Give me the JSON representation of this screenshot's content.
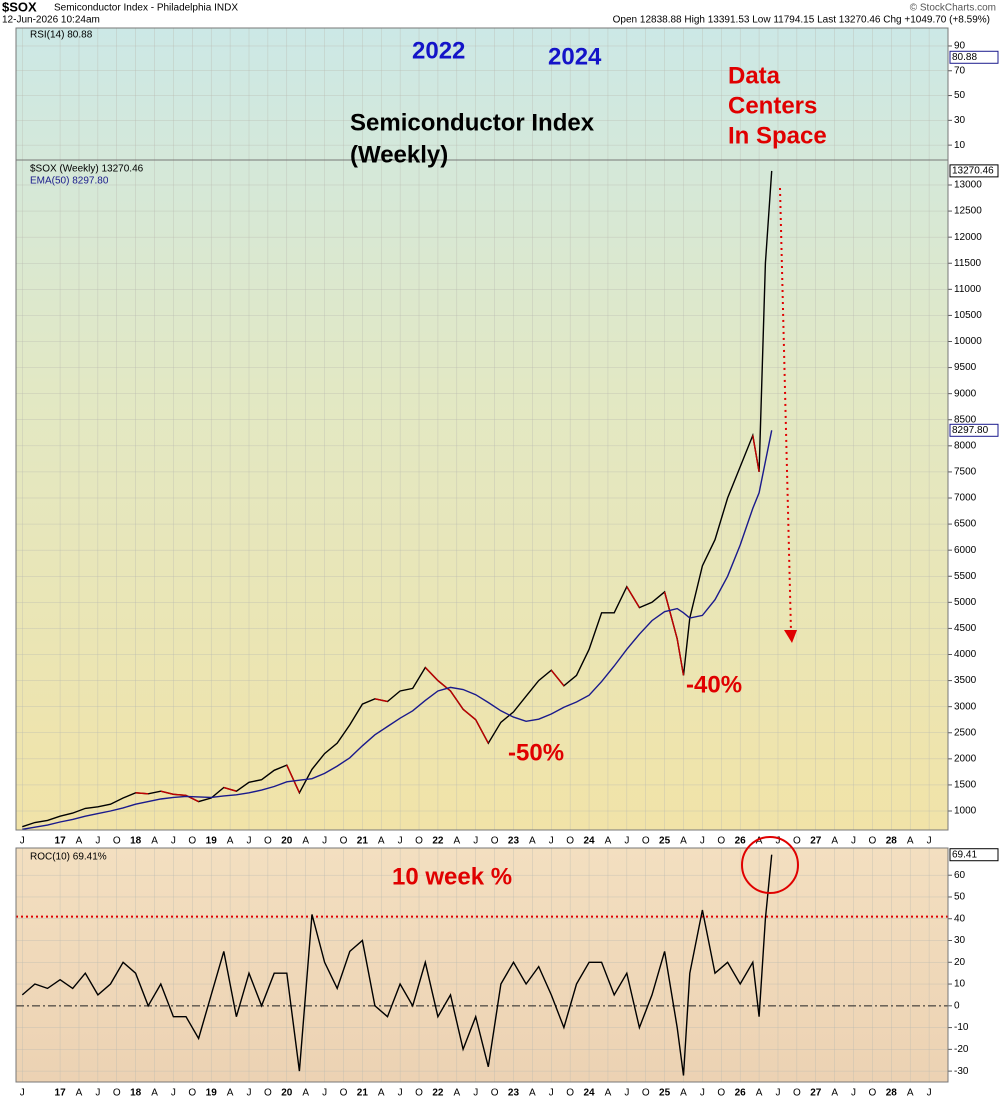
{
  "header": {
    "symbol": "$SOX",
    "name": "Semiconductor Index - Philadelphia INDX",
    "date": "12-Jun-2026 10:24am",
    "quote": "Open 12838.88  High 13391.53  Low 11794.15  Last 13270.46  Chg +1049.70 (+8.59%)",
    "credit": "© StockCharts.com"
  },
  "chart_data": [
    {
      "type": "line",
      "legend": "RSI(14) 80.88",
      "last_value": 80.88,
      "ylim": [
        -2,
        104.5
      ],
      "yticks": [
        10,
        30,
        50,
        70,
        90
      ],
      "grid": true
    },
    {
      "type": "line",
      "title": [
        "Semiconductor Index",
        "(Weekly)"
      ],
      "annotations": [
        "2022",
        "2024",
        "-50%",
        "-40%"
      ],
      "callout": [
        "Data",
        "Centers",
        "In Space"
      ],
      "xlim": [
        "2016-06",
        "2028-10"
      ],
      "xticks": [
        {
          "value": "2016-07",
          "label": "J"
        },
        {
          "value": "2017-01",
          "label": "17"
        },
        {
          "value": "2017-04",
          "label": "A"
        },
        {
          "value": "2017-07",
          "label": "J"
        },
        {
          "value": "2017-10",
          "label": "O"
        },
        {
          "value": "2018-01",
          "label": "18"
        },
        {
          "value": "2018-04",
          "label": "A"
        },
        {
          "value": "2018-07",
          "label": "J"
        },
        {
          "value": "2018-10",
          "label": "O"
        },
        {
          "value": "2019-01",
          "label": "19"
        },
        {
          "value": "2019-04",
          "label": "A"
        },
        {
          "value": "2019-07",
          "label": "J"
        },
        {
          "value": "2019-10",
          "label": "O"
        },
        {
          "value": "2020-01",
          "label": "20"
        },
        {
          "value": "2020-04",
          "label": "A"
        },
        {
          "value": "2020-07",
          "label": "J"
        },
        {
          "value": "2020-10",
          "label": "O"
        },
        {
          "value": "2021-01",
          "label": "21"
        },
        {
          "value": "2021-04",
          "label": "A"
        },
        {
          "value": "2021-07",
          "label": "J"
        },
        {
          "value": "2021-10",
          "label": "O"
        },
        {
          "value": "2022-01",
          "label": "22"
        },
        {
          "value": "2022-04",
          "label": "A"
        },
        {
          "value": "2022-07",
          "label": "J"
        },
        {
          "value": "2022-10",
          "label": "O"
        },
        {
          "value": "2023-01",
          "label": "23"
        },
        {
          "value": "2023-04",
          "label": "A"
        },
        {
          "value": "2023-07",
          "label": "J"
        },
        {
          "value": "2023-10",
          "label": "O"
        },
        {
          "value": "2024-01",
          "label": "24"
        },
        {
          "value": "2024-04",
          "label": "A"
        },
        {
          "value": "2024-07",
          "label": "J"
        },
        {
          "value": "2024-10",
          "label": "O"
        },
        {
          "value": "2025-01",
          "label": "25"
        },
        {
          "value": "2025-04",
          "label": "A"
        },
        {
          "value": "2025-07",
          "label": "J"
        },
        {
          "value": "2025-10",
          "label": "O"
        },
        {
          "value": "2026-01",
          "label": "26"
        },
        {
          "value": "2026-04",
          "label": "A"
        },
        {
          "value": "2026-07",
          "label": "J"
        },
        {
          "value": "2026-10",
          "label": "O"
        },
        {
          "value": "2027-01",
          "label": "27"
        },
        {
          "value": "2027-04",
          "label": "A"
        },
        {
          "value": "2027-07",
          "label": "J"
        },
        {
          "value": "2027-10",
          "label": "O"
        },
        {
          "value": "2028-01",
          "label": "28"
        },
        {
          "value": "2028-04",
          "label": "A"
        },
        {
          "value": "2028-07",
          "label": "J"
        }
      ],
      "ylim": [
        636,
        13479
      ],
      "yticks": [
        1000,
        1500,
        2000,
        2500,
        3000,
        3500,
        4000,
        4500,
        5000,
        5500,
        6000,
        6500,
        7000,
        7500,
        8000,
        8500,
        9000,
        9500,
        10000,
        10500,
        11000,
        11500,
        12000,
        12500,
        13000
      ],
      "grid": true,
      "x": [
        "2016-07",
        "2016-09",
        "2016-11",
        "2017-01",
        "2017-03",
        "2017-05",
        "2017-07",
        "2017-09",
        "2017-11",
        "2018-01",
        "2018-03",
        "2018-05",
        "2018-07",
        "2018-09",
        "2018-11",
        "2019-01",
        "2019-03",
        "2019-05",
        "2019-07",
        "2019-09",
        "2019-11",
        "2020-01",
        "2020-03",
        "2020-05",
        "2020-07",
        "2020-09",
        "2020-11",
        "2021-01",
        "2021-03",
        "2021-05",
        "2021-07",
        "2021-09",
        "2021-11",
        "2022-01",
        "2022-03",
        "2022-05",
        "2022-07",
        "2022-09",
        "2022-11",
        "2023-01",
        "2023-03",
        "2023-05",
        "2023-07",
        "2023-09",
        "2023-11",
        "2024-01",
        "2024-03",
        "2024-05",
        "2024-07",
        "2024-09",
        "2024-11",
        "2025-01",
        "2025-03",
        "2025-04",
        "2025-05",
        "2025-07",
        "2025-09",
        "2025-11",
        "2026-01",
        "2026-03",
        "2026-04",
        "2026-05",
        "2026-06"
      ],
      "series": [
        {
          "name": "$SOX (Weekly) 13270.46",
          "color": "#000000",
          "down_color": "#c00000",
          "last_label": "13270.46",
          "values": [
            700,
            780,
            820,
            900,
            960,
            1050,
            1080,
            1130,
            1250,
            1350,
            1330,
            1380,
            1320,
            1300,
            1180,
            1250,
            1450,
            1380,
            1550,
            1600,
            1780,
            1880,
            1350,
            1800,
            2100,
            2300,
            2650,
            3050,
            3150,
            3100,
            3300,
            3350,
            3750,
            3500,
            3300,
            2950,
            2750,
            2300,
            2700,
            2900,
            3200,
            3500,
            3700,
            3400,
            3600,
            4100,
            4800,
            4800,
            5300,
            4900,
            5000,
            5200,
            4300,
            3600,
            4700,
            5700,
            6200,
            7000,
            7600,
            8200,
            7500,
            11500,
            13270.46
          ]
        },
        {
          "name": "EMA(50) 8297.80",
          "color": "#1a1a8c",
          "last_label": "8297.80",
          "values": [
            650,
            690,
            730,
            790,
            840,
            900,
            950,
            1000,
            1060,
            1130,
            1180,
            1230,
            1260,
            1280,
            1270,
            1260,
            1290,
            1310,
            1350,
            1400,
            1470,
            1560,
            1590,
            1620,
            1720,
            1860,
            2020,
            2250,
            2460,
            2620,
            2780,
            2920,
            3120,
            3300,
            3370,
            3330,
            3230,
            3080,
            2920,
            2800,
            2720,
            2760,
            2860,
            2990,
            3090,
            3220,
            3480,
            3780,
            4100,
            4390,
            4650,
            4820,
            4880,
            4800,
            4700,
            4750,
            5050,
            5500,
            6100,
            6800,
            7100,
            7700,
            8297.8
          ]
        }
      ]
    },
    {
      "type": "line",
      "annotations": [
        "10 week %"
      ],
      "xlim": [
        "2016-06",
        "2028-10"
      ],
      "xticks": [
        {
          "value": "2016-07",
          "label": "J"
        },
        {
          "value": "2017-01",
          "label": "17"
        },
        {
          "value": "2017-04",
          "label": "A"
        },
        {
          "value": "2017-07",
          "label": "J"
        },
        {
          "value": "2017-10",
          "label": "O"
        },
        {
          "value": "2018-01",
          "label": "18"
        },
        {
          "value": "2018-04",
          "label": "A"
        },
        {
          "value": "2018-07",
          "label": "J"
        },
        {
          "value": "2018-10",
          "label": "O"
        },
        {
          "value": "2019-01",
          "label": "19"
        },
        {
          "value": "2019-04",
          "label": "A"
        },
        {
          "value": "2019-07",
          "label": "J"
        },
        {
          "value": "2019-10",
          "label": "O"
        },
        {
          "value": "2020-01",
          "label": "20"
        },
        {
          "value": "2020-04",
          "label": "A"
        },
        {
          "value": "2020-07",
          "label": "J"
        },
        {
          "value": "2020-10",
          "label": "O"
        },
        {
          "value": "2021-01",
          "label": "21"
        },
        {
          "value": "2021-04",
          "label": "A"
        },
        {
          "value": "2021-07",
          "label": "J"
        },
        {
          "value": "2021-10",
          "label": "O"
        },
        {
          "value": "2022-01",
          "label": "22"
        },
        {
          "value": "2022-04",
          "label": "A"
        },
        {
          "value": "2022-07",
          "label": "J"
        },
        {
          "value": "2022-10",
          "label": "O"
        },
        {
          "value": "2023-01",
          "label": "23"
        },
        {
          "value": "2023-04",
          "label": "A"
        },
        {
          "value": "2023-07",
          "label": "J"
        },
        {
          "value": "2023-10",
          "label": "O"
        },
        {
          "value": "2024-01",
          "label": "24"
        },
        {
          "value": "2024-04",
          "label": "A"
        },
        {
          "value": "2024-07",
          "label": "J"
        },
        {
          "value": "2024-10",
          "label": "O"
        },
        {
          "value": "2025-01",
          "label": "25"
        },
        {
          "value": "2025-04",
          "label": "A"
        },
        {
          "value": "2025-07",
          "label": "J"
        },
        {
          "value": "2025-10",
          "label": "O"
        },
        {
          "value": "2026-01",
          "label": "26"
        },
        {
          "value": "2026-04",
          "label": "A"
        },
        {
          "value": "2026-07",
          "label": "J"
        },
        {
          "value": "2026-10",
          "label": "O"
        },
        {
          "value": "2027-01",
          "label": "27"
        },
        {
          "value": "2027-04",
          "label": "A"
        },
        {
          "value": "2027-07",
          "label": "J"
        },
        {
          "value": "2027-10",
          "label": "O"
        },
        {
          "value": "2028-01",
          "label": "28"
        },
        {
          "value": "2028-04",
          "label": "A"
        },
        {
          "value": "2028-07",
          "label": "J"
        }
      ],
      "ylim": [
        -35,
        72.5
      ],
      "yticks": [
        -30,
        -20,
        -10,
        0,
        10,
        20,
        30,
        40,
        50,
        60
      ],
      "grid": true,
      "threshold": 41,
      "threshold_color": "#e00000",
      "x": [
        "2016-07",
        "2016-09",
        "2016-11",
        "2017-01",
        "2017-03",
        "2017-05",
        "2017-07",
        "2017-09",
        "2017-11",
        "2018-01",
        "2018-03",
        "2018-05",
        "2018-07",
        "2018-09",
        "2018-11",
        "2019-01",
        "2019-03",
        "2019-05",
        "2019-07",
        "2019-09",
        "2019-11",
        "2020-01",
        "2020-03",
        "2020-05",
        "2020-07",
        "2020-09",
        "2020-11",
        "2021-01",
        "2021-03",
        "2021-05",
        "2021-07",
        "2021-09",
        "2021-11",
        "2022-01",
        "2022-03",
        "2022-05",
        "2022-07",
        "2022-09",
        "2022-11",
        "2023-01",
        "2023-03",
        "2023-05",
        "2023-07",
        "2023-09",
        "2023-11",
        "2024-01",
        "2024-03",
        "2024-05",
        "2024-07",
        "2024-09",
        "2024-11",
        "2025-01",
        "2025-03",
        "2025-04",
        "2025-05",
        "2025-07",
        "2025-09",
        "2025-11",
        "2026-01",
        "2026-03",
        "2026-04",
        "2026-05",
        "2026-06"
      ],
      "series": [
        {
          "name": "ROC(10) 69.41%",
          "color": "#000000",
          "last_label": "69.41",
          "values": [
            5,
            10,
            8,
            12,
            8,
            15,
            5,
            10,
            20,
            15,
            0,
            10,
            -5,
            -5,
            -15,
            5,
            25,
            -5,
            15,
            0,
            15,
            15,
            -30,
            42,
            20,
            8,
            25,
            30,
            0,
            -5,
            10,
            0,
            20,
            -5,
            5,
            -20,
            -5,
            -28,
            10,
            20,
            10,
            18,
            5,
            -10,
            10,
            20,
            20,
            5,
            15,
            -10,
            5,
            25,
            -10,
            -32,
            15,
            44,
            15,
            20,
            10,
            20,
            -5,
            40,
            69.41
          ]
        }
      ]
    }
  ]
}
